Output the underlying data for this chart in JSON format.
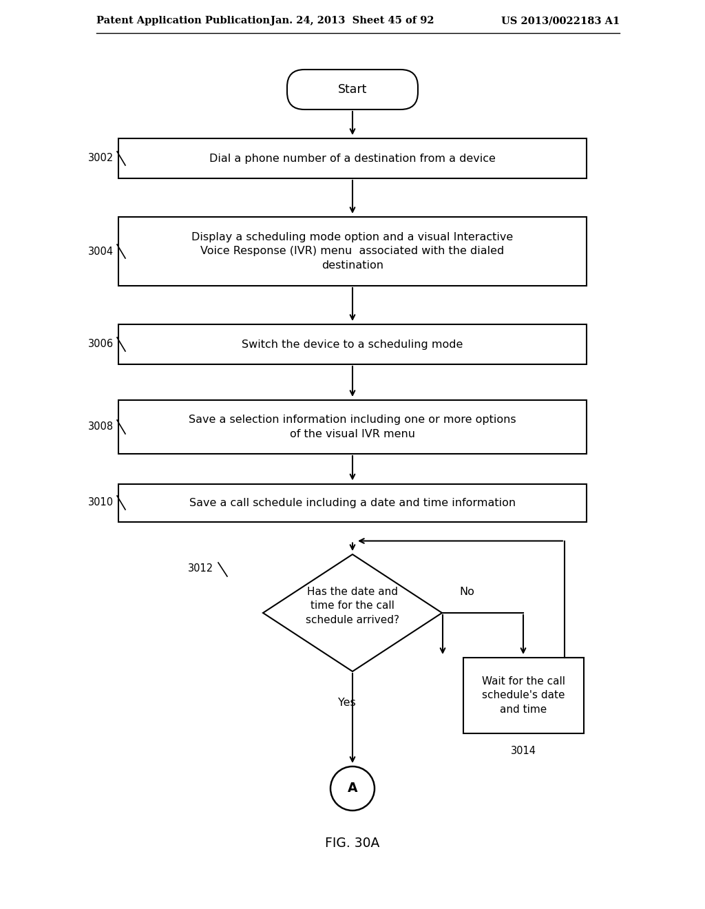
{
  "bg_color": "#ffffff",
  "header_left": "Patent Application Publication",
  "header_mid": "Jan. 24, 2013  Sheet 45 of 92",
  "header_right": "US 2013/0022183 A1",
  "caption": "FIG. 30A",
  "start_label": "Start",
  "box_3002_label": "Dial a phone number of a destination from a device",
  "box_3004_label": "Display a scheduling mode option and a visual Interactive\nVoice Response (IVR) menu  associated with the dialed\ndestination",
  "box_3006_label": "Switch the device to a scheduling mode",
  "box_3008_label": "Save a selection information including one or more options\nof the visual IVR menu",
  "box_3010_label": "Save a call schedule including a date and time information",
  "diamond_label": "Has the date and\ntime for the call\nschedule arrived?",
  "wait_label": "Wait for the call\nschedule's date\nand time",
  "terminal_label": "A",
  "line_color": "#000000",
  "text_color": "#000000",
  "font_size": 11.5,
  "header_font_size": 10.5
}
